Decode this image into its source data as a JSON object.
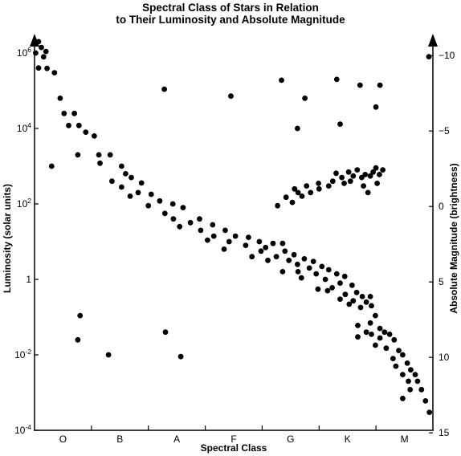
{
  "chart_data": {
    "type": "scatter",
    "title": "Spectral Class of Stars in Relation",
    "subtitle": "to Their Luminosity and Absolute Magnitude",
    "xlabel": "Spectral Class",
    "ylabel": "Luminosity (solar units)",
    "ylabel_right": "Absolute Magnitude (brightness)",
    "yscale": "log",
    "ylim": [
      0.0001,
      1000000
    ],
    "categories": [
      "O",
      "B",
      "A",
      "F",
      "G",
      "K",
      "M"
    ],
    "xlim": [
      0,
      7
    ],
    "y_ticks": [
      {
        "base": "10",
        "exp": "6",
        "value": 1000000
      },
      {
        "base": "10",
        "exp": "4",
        "value": 10000
      },
      {
        "base": "10",
        "exp": "2",
        "value": 100
      },
      {
        "base": "1",
        "exp": "",
        "value": 1
      },
      {
        "base": "10",
        "exp": "-2",
        "value": 0.01
      },
      {
        "base": "10",
        "exp": "-4",
        "value": 0.0001
      }
    ],
    "magnitude_ticks": [
      {
        "label": "−10",
        "magnitude": -10
      },
      {
        "label": "−5",
        "magnitude": -5
      },
      {
        "label": "0",
        "magnitude": 0
      },
      {
        "label": "5",
        "magnitude": 5
      },
      {
        "label": "10",
        "magnitude": 10
      },
      {
        "label": "15",
        "magnitude": 15
      }
    ],
    "grid": false,
    "series": [
      {
        "points": [
          [
            0.07,
            2000000
          ],
          [
            0.12,
            1400000
          ],
          [
            0.2,
            1100000
          ],
          [
            0.02,
            1000000
          ],
          [
            0.16,
            790000
          ],
          [
            0.07,
            400000
          ],
          [
            0.22,
            390000
          ],
          [
            0.35,
            300000
          ],
          [
            0.45,
            63000
          ],
          [
            0.52,
            25000
          ],
          [
            0.7,
            25000
          ],
          [
            0.78,
            12000
          ],
          [
            0.6,
            12000
          ],
          [
            0.9,
            8000
          ],
          [
            1.05,
            6300
          ],
          [
            0.76,
            2000
          ],
          [
            1.13,
            2000
          ],
          [
            1.33,
            2000
          ],
          [
            1.15,
            1200
          ],
          [
            1.53,
            1000
          ],
          [
            1.6,
            630
          ],
          [
            1.7,
            500
          ],
          [
            1.36,
            400
          ],
          [
            1.88,
            360
          ],
          [
            1.53,
            280
          ],
          [
            1.82,
            200
          ],
          [
            2.05,
            180
          ],
          [
            1.68,
            160
          ],
          [
            2.2,
            120
          ],
          [
            2.43,
            100
          ],
          [
            2.0,
            90
          ],
          [
            2.61,
            80
          ],
          [
            2.29,
            56
          ],
          [
            2.44,
            40
          ],
          [
            2.9,
            40
          ],
          [
            2.74,
            32
          ],
          [
            3.13,
            28
          ],
          [
            2.55,
            25
          ],
          [
            2.92,
            20
          ],
          [
            3.35,
            20
          ],
          [
            3.15,
            14
          ],
          [
            3.53,
            14
          ],
          [
            3.76,
            13
          ],
          [
            3.04,
            11
          ],
          [
            3.42,
            10
          ],
          [
            3.95,
            10
          ],
          [
            4.19,
            9
          ],
          [
            4.36,
            9
          ],
          [
            3.71,
            8
          ],
          [
            4.06,
            7
          ],
          [
            3.33,
            6.3
          ],
          [
            3.98,
            5.6
          ],
          [
            4.4,
            5.6
          ],
          [
            4.56,
            4.5
          ],
          [
            3.82,
            4.0
          ],
          [
            4.25,
            4.0
          ],
          [
            4.74,
            3.5
          ],
          [
            4.1,
            3.2
          ],
          [
            4.47,
            3.2
          ],
          [
            4.9,
            3.0
          ],
          [
            4.62,
            2.5
          ],
          [
            5.05,
            2.2
          ],
          [
            4.83,
            2.0
          ],
          [
            5.17,
            1.8
          ],
          [
            4.36,
            1.6
          ],
          [
            4.63,
            1.6
          ],
          [
            4.95,
            1.4
          ],
          [
            5.31,
            1.4
          ],
          [
            5.45,
            1.2
          ],
          [
            4.69,
            1.1
          ],
          [
            5.11,
            1.0
          ],
          [
            5.37,
            0.8
          ],
          [
            5.58,
            0.7
          ],
          [
            5.23,
            0.6
          ],
          [
            4.98,
            0.55
          ],
          [
            5.15,
            0.5
          ],
          [
            5.66,
            0.45
          ],
          [
            5.46,
            0.4
          ],
          [
            5.76,
            0.35
          ],
          [
            5.9,
            0.35
          ],
          [
            5.37,
            0.3
          ],
          [
            5.6,
            0.27
          ],
          [
            5.83,
            0.25
          ],
          [
            5.53,
            0.22
          ],
          [
            5.92,
            0.2
          ],
          [
            5.73,
            0.18
          ],
          [
            5.99,
            0.11
          ],
          [
            5.9,
            0.07
          ],
          [
            5.68,
            0.06
          ],
          [
            6.07,
            0.05
          ],
          [
            5.83,
            0.04
          ],
          [
            6.15,
            0.04
          ],
          [
            6.24,
            0.035
          ],
          [
            5.92,
            0.035
          ],
          [
            5.68,
            0.03
          ],
          [
            6.07,
            0.028
          ],
          [
            6.32,
            0.025
          ],
          [
            5.99,
            0.018
          ],
          [
            6.18,
            0.015
          ],
          [
            6.4,
            0.013
          ],
          [
            6.47,
            0.01
          ],
          [
            6.3,
            0.008
          ],
          [
            6.55,
            0.006
          ],
          [
            6.35,
            0.005
          ],
          [
            6.61,
            0.004
          ],
          [
            6.69,
            0.003
          ],
          [
            6.47,
            0.003
          ],
          [
            6.57,
            0.002
          ],
          [
            6.73,
            0.002
          ],
          [
            6.6,
            0.0012
          ],
          [
            6.8,
            0.0012
          ],
          [
            6.47,
            0.0007
          ],
          [
            6.87,
            0.0006
          ],
          [
            6.94,
            0.0003
          ],
          [
            4.27,
            90
          ],
          [
            4.53,
            110
          ],
          [
            4.42,
            150
          ],
          [
            4.7,
            160
          ],
          [
            4.63,
            200
          ],
          [
            4.85,
            200
          ],
          [
            4.57,
            250
          ],
          [
            5.0,
            250
          ],
          [
            4.78,
            300
          ],
          [
            5.17,
            300
          ],
          [
            4.99,
            350
          ],
          [
            5.44,
            350
          ],
          [
            5.24,
            400
          ],
          [
            5.55,
            400
          ],
          [
            5.4,
            500
          ],
          [
            5.75,
            500
          ],
          [
            5.6,
            550
          ],
          [
            5.9,
            550
          ],
          [
            5.81,
            600
          ],
          [
            6.06,
            600
          ],
          [
            5.3,
            650
          ],
          [
            5.52,
            700
          ],
          [
            5.95,
            700
          ],
          [
            5.67,
            800
          ],
          [
            6.12,
            800
          ],
          [
            6.0,
            900
          ],
          [
            5.86,
            200
          ],
          [
            5.78,
            300
          ],
          [
            6.02,
            350
          ],
          [
            0.3,
            1000
          ],
          [
            2.28,
            110000
          ],
          [
            3.45,
            72000
          ],
          [
            4.34,
            190000
          ],
          [
            6.93,
            800000
          ],
          [
            5.31,
            200000
          ],
          [
            5.72,
            140000
          ],
          [
            6.07,
            140000
          ],
          [
            4.75,
            63000
          ],
          [
            6.0,
            37000
          ],
          [
            5.37,
            13000
          ],
          [
            4.62,
            10000
          ],
          [
            0.8,
            0.11
          ],
          [
            0.76,
            0.025
          ],
          [
            1.3,
            0.01
          ],
          [
            2.3,
            0.04
          ],
          [
            2.57,
            0.009
          ]
        ]
      }
    ]
  }
}
